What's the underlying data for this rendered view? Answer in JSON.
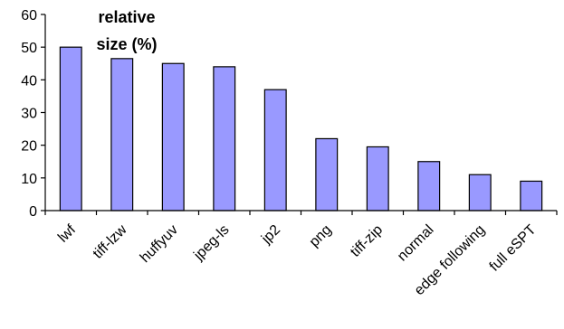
{
  "chart_data": {
    "type": "bar",
    "title": "relative size (%)",
    "title_lines": [
      "relative",
      "size (%)"
    ],
    "categories": [
      "lwf",
      "tiff-lzw",
      "huffyuv",
      "jpeg-ls",
      "jp2",
      "png",
      "tiff-zip",
      "normal",
      "edge following",
      "full eSPT"
    ],
    "values": [
      50,
      46.5,
      45,
      44,
      37,
      22,
      19.5,
      15,
      11,
      9
    ],
    "ylim": [
      0,
      60
    ],
    "yticks": [
      0,
      10,
      20,
      30,
      40,
      50,
      60
    ],
    "grid": false,
    "legend": "none",
    "bar_color": "#9999ff",
    "bar_edge_color": "#000000",
    "xlabel": "",
    "ylabel": ""
  }
}
